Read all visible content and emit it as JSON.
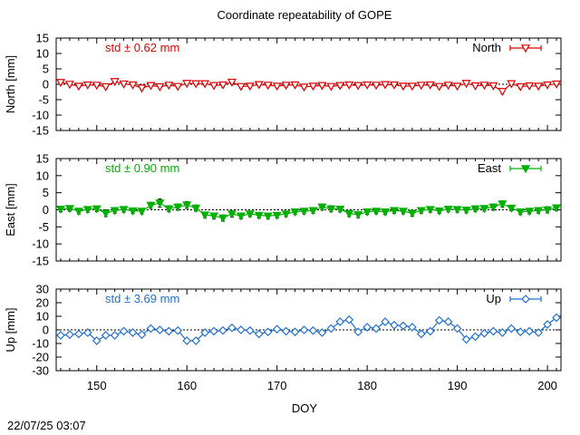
{
  "title": "Coordinate repeatability of GOPE",
  "timestamp": "22/07/25 03:07",
  "xlabel": "DOY",
  "colors": {
    "north": "#e00000",
    "east": "#00b000",
    "up": "#1f6fd0",
    "errorbar": "#000000"
  },
  "chart_data": [
    {
      "type": "line",
      "name": "North",
      "ylabel": "North [mm]",
      "annotation": "std ± 0.62 mm",
      "legend": "North",
      "marker": "triangle-down-open",
      "xlim": [
        145.5,
        201.5
      ],
      "ylim": [
        -15,
        15
      ],
      "yticks": [
        "15",
        "10",
        "5",
        "0",
        "-5",
        "-10",
        "-15"
      ],
      "x": [
        146,
        147,
        148,
        149,
        150,
        151,
        152,
        153,
        154,
        155,
        156,
        157,
        158,
        159,
        160,
        161,
        162,
        163,
        164,
        165,
        166,
        167,
        168,
        169,
        170,
        171,
        172,
        173,
        174,
        175,
        176,
        177,
        178,
        179,
        180,
        181,
        182,
        183,
        184,
        185,
        186,
        187,
        188,
        189,
        190,
        191,
        192,
        193,
        194,
        195,
        196,
        197,
        198,
        199,
        200,
        201
      ],
      "y": [
        0.6,
        0.0,
        -0.6,
        -0.2,
        -0.3,
        -0.8,
        0.9,
        0.1,
        -0.2,
        -1.2,
        -0.4,
        -0.8,
        -0.3,
        -0.7,
        0.3,
        0.2,
        0.2,
        -0.4,
        -0.2,
        0.7,
        -0.7,
        -0.6,
        -0.1,
        -0.3,
        -0.6,
        -0.3,
        -0.2,
        -0.9,
        -0.6,
        -0.4,
        -0.7,
        -0.4,
        -0.2,
        -0.4,
        -0.2,
        -0.3,
        -0.1,
        -0.2,
        -0.6,
        -0.6,
        -0.3,
        -0.2,
        -0.7,
        -0.3,
        -0.6,
        0.3,
        -0.5,
        -0.3,
        -0.5,
        -2.3,
        0.2,
        -0.8,
        -0.5,
        -0.6,
        -0.2,
        0.1
      ],
      "err": [
        0.6,
        0.5,
        0.5,
        0.5,
        0.5,
        0.6,
        0.6,
        0.5,
        0.5,
        0.6,
        0.5,
        0.5,
        0.5,
        0.5,
        0.6,
        0.5,
        0.5,
        0.5,
        0.6,
        0.7,
        0.6,
        0.5,
        0.5,
        0.5,
        0.5,
        0.6,
        0.5,
        0.6,
        0.5,
        0.5,
        0.5,
        0.6,
        0.5,
        0.5,
        0.5,
        0.5,
        0.5,
        0.5,
        0.6,
        0.5,
        0.5,
        0.5,
        0.5,
        0.5,
        0.5,
        0.6,
        0.5,
        0.5,
        0.5,
        0.7,
        0.6,
        0.5,
        0.5,
        0.5,
        0.5,
        0.5
      ]
    },
    {
      "type": "line",
      "name": "East",
      "ylabel": "East [mm]",
      "annotation": "std ± 0.90 mm",
      "legend": "East",
      "marker": "triangle-down-filled",
      "xlim": [
        145.5,
        201.5
      ],
      "ylim": [
        -15,
        15
      ],
      "yticks": [
        "15",
        "10",
        "5",
        "0",
        "-5",
        "-10",
        "-15"
      ],
      "x": [
        146,
        147,
        148,
        149,
        150,
        151,
        152,
        153,
        154,
        155,
        156,
        157,
        158,
        159,
        160,
        161,
        162,
        163,
        164,
        165,
        166,
        167,
        168,
        169,
        170,
        171,
        172,
        173,
        174,
        175,
        176,
        177,
        178,
        179,
        180,
        181,
        182,
        183,
        184,
        185,
        186,
        187,
        188,
        189,
        190,
        191,
        192,
        193,
        194,
        195,
        196,
        197,
        198,
        199,
        200,
        201
      ],
      "y": [
        0.2,
        0.4,
        -0.4,
        0.1,
        0.3,
        -1.0,
        -0.2,
        0.1,
        -0.3,
        -0.4,
        1.3,
        2.0,
        0.3,
        0.8,
        1.4,
        0.5,
        -1.5,
        -1.8,
        -2.4,
        -1.2,
        -1.8,
        -1.2,
        -1.6,
        -1.8,
        -1.6,
        -1.2,
        -0.6,
        -0.4,
        -0.2,
        0.8,
        0.3,
        0.2,
        -1.1,
        -1.4,
        -0.6,
        -0.4,
        -0.6,
        -0.2,
        -0.4,
        -1.0,
        -0.2,
        0.1,
        -0.3,
        0.2,
        0.1,
        -0.1,
        0.3,
        0.4,
        0.8,
        1.7,
        0.5,
        -0.6,
        -0.4,
        -0.2,
        0.0,
        0.6
      ],
      "err": [
        0.8,
        0.8,
        0.8,
        0.8,
        0.8,
        1.0,
        0.8,
        0.8,
        0.8,
        0.8,
        0.9,
        1.2,
        0.9,
        0.9,
        1.0,
        0.9,
        0.8,
        0.8,
        0.9,
        0.9,
        0.8,
        0.8,
        0.8,
        0.8,
        0.8,
        0.8,
        0.8,
        0.8,
        0.8,
        0.9,
        0.9,
        0.8,
        0.9,
        0.9,
        0.8,
        0.8,
        0.8,
        0.8,
        0.8,
        0.9,
        0.8,
        0.8,
        0.8,
        0.8,
        0.8,
        0.8,
        0.8,
        0.8,
        0.9,
        0.9,
        0.8,
        0.8,
        0.8,
        0.8,
        0.9,
        0.8
      ]
    },
    {
      "type": "line",
      "name": "Up",
      "ylabel": "Up [mm]",
      "annotation": "std ± 3.69 mm",
      "legend": "Up",
      "marker": "diamond-open",
      "xlim": [
        145.5,
        201.5
      ],
      "ylim": [
        -30,
        30
      ],
      "yticks": [
        "30",
        "20",
        "10",
        "0",
        "-10",
        "-20",
        "-30"
      ],
      "x": [
        146,
        147,
        148,
        149,
        150,
        151,
        152,
        153,
        154,
        155,
        156,
        157,
        158,
        159,
        160,
        161,
        162,
        163,
        164,
        165,
        166,
        167,
        168,
        169,
        170,
        171,
        172,
        173,
        174,
        175,
        176,
        177,
        178,
        179,
        180,
        181,
        182,
        183,
        184,
        185,
        186,
        187,
        188,
        189,
        190,
        191,
        192,
        193,
        194,
        195,
        196,
        197,
        198,
        199,
        200,
        201
      ],
      "y": [
        -4,
        -3.5,
        -3,
        -2,
        -8,
        -4,
        -4,
        -1,
        -2,
        -3.5,
        1,
        0,
        -1,
        -0.5,
        -8,
        -8,
        -2,
        -1,
        -0.5,
        1.5,
        0,
        -0.5,
        -3,
        -1.5,
        0.5,
        -1,
        -1.5,
        0,
        -0.5,
        -2,
        1,
        6,
        7.5,
        -1.5,
        2,
        1,
        6,
        3.5,
        3,
        2,
        -3,
        -1,
        7,
        6,
        1,
        -7,
        -5,
        -2.5,
        -1,
        -2,
        1,
        -1.5,
        -1,
        -2,
        4,
        9
      ],
      "err": [
        1.2,
        1.2,
        1.2,
        1.2,
        1.2,
        1.2,
        1.3,
        1.2,
        1.2,
        1.2,
        1.2,
        1.2,
        1.2,
        1.2,
        1.3,
        1.2,
        1.2,
        1.2,
        1.2,
        1.2,
        1.2,
        1.2,
        1.2,
        1.2,
        1.2,
        1.2,
        1.2,
        1.2,
        1.2,
        1.4,
        1.2,
        1.3,
        1.2,
        1.2,
        1.2,
        1.2,
        1.2,
        1.2,
        1.2,
        1.2,
        1.3,
        1.2,
        1.3,
        1.2,
        1.2,
        1.2,
        1.2,
        1.2,
        1.2,
        1.2,
        1.2,
        1.2,
        1.2,
        1.2,
        1.2,
        1.2
      ]
    }
  ],
  "xticks": [
    "150",
    "160",
    "170",
    "180",
    "190",
    "200"
  ]
}
